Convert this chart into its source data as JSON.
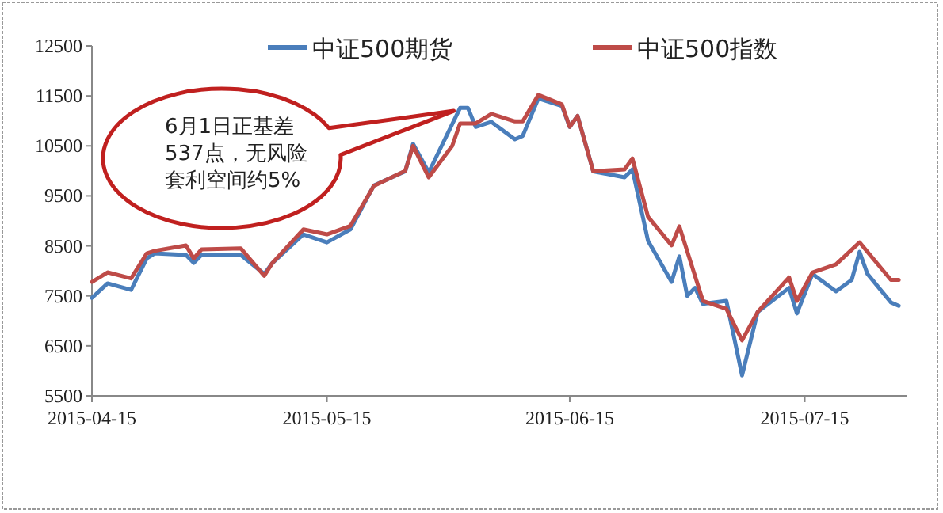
{
  "chart_data": {
    "type": "line",
    "series": [
      {
        "name": "中证500期货",
        "color": "#4a7ebb",
        "x": [
          "2015-04-15",
          "2015-04-17",
          "2015-04-20",
          "2015-04-22",
          "2015-04-23",
          "2015-04-27",
          "2015-04-28",
          "2015-04-29",
          "2015-05-04",
          "2015-05-07",
          "2015-05-08",
          "2015-05-12",
          "2015-05-15",
          "2015-05-18",
          "2015-05-21",
          "2015-05-25",
          "2015-05-26",
          "2015-05-28",
          "2015-06-01",
          "2015-06-02",
          "2015-06-03",
          "2015-06-05",
          "2015-06-08",
          "2015-06-09",
          "2015-06-11",
          "2015-06-14",
          "2015-06-15",
          "2015-06-16",
          "2015-06-18",
          "2015-06-22",
          "2015-06-23",
          "2015-06-25",
          "2015-06-28",
          "2015-06-29",
          "2015-06-30",
          "2015-07-01",
          "2015-07-02",
          "2015-07-05",
          "2015-07-07",
          "2015-07-09",
          "2015-07-13",
          "2015-07-14",
          "2015-07-16",
          "2015-07-19",
          "2015-07-21",
          "2015-07-22",
          "2015-07-23",
          "2015-07-26",
          "2015-07-27"
        ],
        "values": [
          7460,
          7750,
          7620,
          8250,
          8350,
          8320,
          8160,
          8320,
          8320,
          7940,
          8150,
          8730,
          8570,
          8830,
          9710,
          9990,
          10540,
          9970,
          11260,
          11260,
          10880,
          10980,
          10630,
          10700,
          11450,
          11300,
          10880,
          11100,
          9990,
          9870,
          10030,
          8600,
          7780,
          8290,
          7500,
          7660,
          7340,
          7400,
          5910,
          7180,
          7660,
          7150,
          7940,
          7590,
          7820,
          8380,
          7940,
          7370,
          7300
        ]
      },
      {
        "name": "中证500指数",
        "color": "#be4b48",
        "x": [
          "2015-04-15",
          "2015-04-17",
          "2015-04-20",
          "2015-04-22",
          "2015-04-23",
          "2015-04-27",
          "2015-04-28",
          "2015-04-29",
          "2015-05-04",
          "2015-05-07",
          "2015-05-08",
          "2015-05-12",
          "2015-05-15",
          "2015-05-18",
          "2015-05-21",
          "2015-05-25",
          "2015-05-26",
          "2015-05-28",
          "2015-05-31",
          "2015-06-01",
          "2015-06-02",
          "2015-06-03",
          "2015-06-05",
          "2015-06-08",
          "2015-06-09",
          "2015-06-11",
          "2015-06-14",
          "2015-06-15",
          "2015-06-16",
          "2015-06-18",
          "2015-06-22",
          "2015-06-23",
          "2015-06-25",
          "2015-06-28",
          "2015-06-29",
          "2015-07-02",
          "2015-07-05",
          "2015-07-07",
          "2015-07-09",
          "2015-07-13",
          "2015-07-14",
          "2015-07-16",
          "2015-07-19",
          "2015-07-22",
          "2015-07-26",
          "2015-07-27"
        ],
        "values": [
          7780,
          7970,
          7850,
          8350,
          8400,
          8510,
          8250,
          8430,
          8450,
          7900,
          8150,
          8830,
          8730,
          8900,
          9700,
          10000,
          10500,
          9870,
          10500,
          10950,
          10950,
          10950,
          11140,
          10990,
          10990,
          11520,
          11330,
          10880,
          11100,
          9990,
          10030,
          10250,
          9080,
          8510,
          8890,
          7400,
          7240,
          6610,
          7180,
          7870,
          7400,
          7970,
          8130,
          8570,
          7820,
          7820
        ]
      }
    ],
    "xlim": [
      "2015-04-15",
      "2015-07-28"
    ],
    "xticks": [
      "2015-04-15",
      "2015-05-15",
      "2015-06-15",
      "2015-07-15"
    ],
    "ylim": [
      5500,
      12500
    ],
    "yticks": [
      5500,
      6500,
      7500,
      8500,
      9500,
      10500,
      11500,
      12500
    ],
    "grid": false,
    "legend": "top",
    "annotations": [
      {
        "text": "6月1日正基差537点，无风险套利空间约5%",
        "x": "2015-06-01",
        "y": 11200
      }
    ]
  }
}
